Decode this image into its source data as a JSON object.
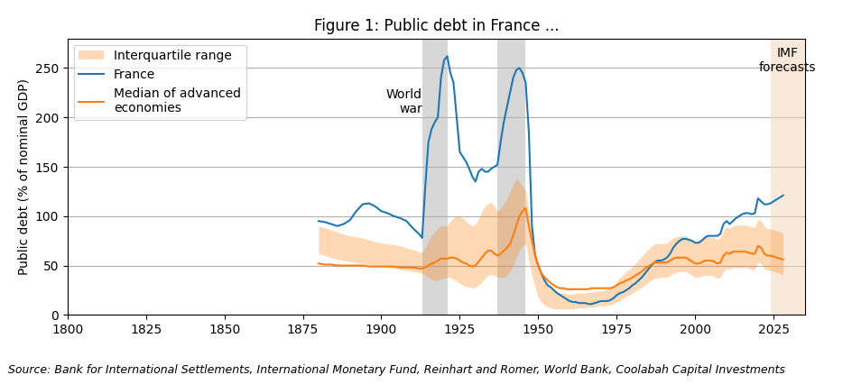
{
  "chart_data": {
    "type": "line",
    "title": "Figure 1: Public debt in France ...",
    "ylabel": "Public debt (% of nominal GDP)",
    "source": "Source: Bank for International Settlements, International Monetary Fund, Reinhart and Romer, World Bank, Coolabah Capital Investments",
    "xlim": [
      1800,
      2035
    ],
    "ylim": [
      0,
      280
    ],
    "xticks": [
      1800,
      1825,
      1850,
      1875,
      1900,
      1925,
      1950,
      1975,
      2000,
      2025
    ],
    "yticks": [
      0,
      50,
      100,
      150,
      200,
      250
    ],
    "grid": true,
    "legend": "upper left",
    "x": [
      1880,
      1882,
      1884,
      1886,
      1888,
      1890,
      1892,
      1894,
      1896,
      1898,
      1900,
      1902,
      1904,
      1906,
      1908,
      1910,
      1912,
      1913,
      1914,
      1915,
      1916,
      1917,
      1918,
      1919,
      1920,
      1921,
      1922,
      1923,
      1924,
      1925,
      1926,
      1927,
      1928,
      1929,
      1930,
      1931,
      1932,
      1933,
      1934,
      1935,
      1936,
      1937,
      1938,
      1939,
      1940,
      1941,
      1942,
      1943,
      1944,
      1945,
      1946,
      1947,
      1948,
      1949,
      1950,
      1951,
      1952,
      1953,
      1954,
      1955,
      1956,
      1957,
      1958,
      1959,
      1960,
      1961,
      1962,
      1963,
      1964,
      1965,
      1966,
      1967,
      1968,
      1969,
      1970,
      1971,
      1972,
      1973,
      1974,
      1975,
      1976,
      1977,
      1978,
      1979,
      1980,
      1981,
      1982,
      1983,
      1984,
      1985,
      1986,
      1987,
      1988,
      1989,
      1990,
      1991,
      1992,
      1993,
      1994,
      1995,
      1996,
      1997,
      1998,
      1999,
      2000,
      2001,
      2002,
      2003,
      2004,
      2005,
      2006,
      2007,
      2008,
      2009,
      2010,
      2011,
      2012,
      2013,
      2014,
      2015,
      2016,
      2017,
      2018,
      2019,
      2020,
      2021,
      2022,
      2023,
      2024,
      2025,
      2026,
      2027,
      2028
    ],
    "series": [
      {
        "name": "France",
        "values": [
          95,
          94,
          92,
          90,
          92,
          96,
          105,
          112,
          113,
          110,
          105,
          103,
          100,
          98,
          95,
          88,
          82,
          78,
          130,
          175,
          188,
          195,
          200,
          240,
          258,
          262,
          245,
          235,
          200,
          165,
          160,
          155,
          148,
          140,
          135,
          145,
          148,
          145,
          145,
          148,
          150,
          152,
          175,
          195,
          210,
          225,
          240,
          248,
          250,
          245,
          235,
          185,
          90,
          60,
          50,
          42,
          35,
          30,
          28,
          25,
          22,
          20,
          18,
          16,
          14,
          13,
          13,
          12,
          12,
          12,
          11,
          11,
          12,
          13,
          14,
          14,
          14,
          15,
          17,
          20,
          22,
          23,
          25,
          27,
          30,
          32,
          35,
          38,
          42,
          46,
          50,
          53,
          55,
          55,
          56,
          58,
          62,
          68,
          72,
          75,
          77,
          77,
          76,
          75,
          73,
          73,
          75,
          78,
          80,
          80,
          80,
          80,
          82,
          92,
          95,
          92,
          95,
          98,
          100,
          102,
          103,
          103,
          102,
          103,
          118,
          115,
          112,
          112,
          113,
          115,
          117,
          119,
          121
        ]
      },
      {
        "name": "Median of advanced\neconomies",
        "values": [
          52,
          51,
          51,
          50,
          50,
          50,
          50,
          50,
          49,
          49,
          49,
          49,
          49,
          48,
          48,
          48,
          47,
          47,
          48,
          50,
          52,
          53,
          55,
          57,
          57,
          57,
          58,
          58,
          57,
          55,
          53,
          52,
          50,
          49,
          50,
          54,
          58,
          62,
          65,
          65,
          62,
          60,
          62,
          65,
          68,
          72,
          80,
          90,
          100,
          105,
          108,
          90,
          75,
          60,
          50,
          42,
          38,
          35,
          32,
          30,
          28,
          27,
          27,
          26,
          26,
          26,
          26,
          26,
          26,
          26,
          26,
          27,
          27,
          27,
          27,
          27,
          27,
          27,
          28,
          30,
          32,
          33,
          35,
          36,
          38,
          40,
          42,
          44,
          47,
          49,
          51,
          53,
          53,
          53,
          53,
          53,
          55,
          57,
          58,
          58,
          58,
          58,
          56,
          54,
          52,
          52,
          53,
          55,
          55,
          55,
          54,
          52,
          53,
          60,
          63,
          62,
          64,
          64,
          64,
          64,
          64,
          63,
          62,
          62,
          70,
          68,
          62,
          60,
          60,
          59,
          58,
          57,
          56
        ]
      }
    ],
    "band": {
      "name": "Interquartile range",
      "lower": [
        62,
        60,
        58,
        56,
        55,
        54,
        53,
        52,
        51,
        50,
        49,
        48,
        47,
        46,
        45,
        44,
        43,
        42,
        40,
        38,
        36,
        35,
        35,
        36,
        37,
        38,
        38,
        36,
        34,
        32,
        30,
        29,
        28,
        27,
        28,
        30,
        33,
        37,
        40,
        41,
        40,
        38,
        38,
        38,
        40,
        44,
        50,
        58,
        65,
        70,
        72,
        55,
        40,
        28,
        18,
        13,
        10,
        8,
        7,
        6,
        6,
        6,
        6,
        6,
        6,
        6,
        7,
        7,
        7,
        7,
        8,
        8,
        8,
        9,
        9,
        9,
        10,
        10,
        11,
        13,
        15,
        17,
        19,
        20,
        22,
        24,
        26,
        28,
        30,
        33,
        35,
        37,
        37,
        38,
        38,
        38,
        40,
        42,
        43,
        44,
        44,
        44,
        42,
        40,
        38,
        38,
        39,
        40,
        40,
        40,
        39,
        37,
        38,
        44,
        47,
        46,
        48,
        48,
        48,
        48,
        48,
        47,
        46,
        46,
        53,
        52,
        47,
        45,
        45,
        44,
        43,
        42,
        41
      ],
      "upper": [
        90,
        88,
        86,
        84,
        82,
        80,
        79,
        78,
        76,
        74,
        73,
        72,
        71,
        70,
        68,
        66,
        64,
        63,
        68,
        75,
        80,
        84,
        88,
        90,
        90,
        90,
        95,
        98,
        100,
        100,
        98,
        95,
        92,
        90,
        92,
        97,
        105,
        110,
        113,
        114,
        110,
        105,
        108,
        112,
        118,
        125,
        132,
        138,
        135,
        130,
        125,
        105,
        85,
        65,
        50,
        40,
        35,
        30,
        27,
        25,
        23,
        22,
        22,
        21,
        21,
        21,
        22,
        22,
        22,
        22,
        23,
        23,
        24,
        24,
        24,
        25,
        26,
        27,
        30,
        34,
        38,
        40,
        44,
        46,
        49,
        52,
        56,
        59,
        63,
        66,
        69,
        72,
        72,
        72,
        72,
        73,
        75,
        78,
        79,
        80,
        80,
        80,
        78,
        76,
        74,
        75,
        77,
        79,
        79,
        79,
        78,
        76,
        78,
        86,
        89,
        88,
        90,
        91,
        91,
        91,
        91,
        90,
        89,
        89,
        97,
        95,
        90,
        87,
        87,
        86,
        85,
        84,
        83
      ]
    },
    "shaded_regions": [
      {
        "start": 1913,
        "end": 1921,
        "color": "#b0b0b0",
        "label": "World\nwar"
      },
      {
        "start": 1937,
        "end": 1946,
        "color": "#b0b0b0"
      },
      {
        "start": 2024,
        "end": 2035,
        "color": "#f5d5b8",
        "label": "IMF\nforecasts"
      }
    ]
  }
}
